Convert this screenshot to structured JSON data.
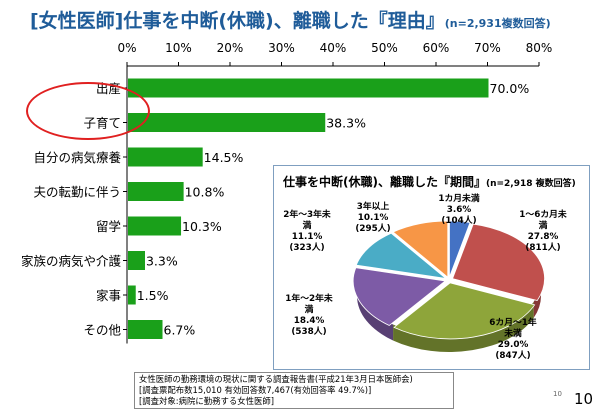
{
  "title": {
    "main": "[女性医師]仕事を中断(休職)、離職した『理由』",
    "sub": "(n=2,931複数回答)"
  },
  "chart_data": [
    {
      "type": "bar",
      "orientation": "horizontal",
      "categories": [
        "出産",
        "子育て",
        "自分の病気療養",
        "夫の転勤に伴う",
        "留学",
        "家族の病気や介護",
        "家事",
        "その他"
      ],
      "values": [
        70.0,
        38.3,
        14.5,
        10.8,
        10.3,
        3.3,
        1.5,
        6.7
      ],
      "value_labels": [
        "70.0%",
        "38.3%",
        "14.5%",
        "10.8%",
        "10.3%",
        "3.3%",
        "1.5%",
        "6.7%"
      ],
      "xlim": [
        0,
        80
      ],
      "x_ticks": [
        "0%",
        "10%",
        "20%",
        "30%",
        "40%",
        "50%",
        "60%",
        "70%",
        "80%"
      ],
      "bar_color": "#1aa01a",
      "gridlines": false
    },
    {
      "type": "pie",
      "title": "仕事を中断(休職)、離職した『期間』",
      "subtitle": "(n=2,918 複数回答)",
      "slices": [
        {
          "label_lines": [
            "1カ月未満",
            "3.6%",
            "(104人)"
          ],
          "value": 3.6,
          "color": "#4472c4"
        },
        {
          "label_lines": [
            "1〜6カ月未",
            "満",
            "27.8%",
            "(811人)"
          ],
          "value": 27.8,
          "color": "#c0504d"
        },
        {
          "label_lines": [
            "6カ月〜1年",
            "未満",
            "29.0%",
            "(847人)"
          ],
          "value": 29.0,
          "color": "#8ea53a"
        },
        {
          "label_lines": [
            "1年〜2年未",
            "満",
            "18.4%",
            "(538人)"
          ],
          "value": 18.4,
          "color": "#7d5ba6"
        },
        {
          "label_lines": [
            "2年〜3年未",
            "満",
            "11.1%",
            "(323人)"
          ],
          "value": 11.1,
          "color": "#4aacc6"
        },
        {
          "label_lines": [
            "3年以上",
            "10.1%",
            "(295人)"
          ],
          "value": 10.1,
          "color": "#f79646"
        }
      ]
    }
  ],
  "source": {
    "line1": "女性医師の勤務環境の現状に関する調査報告書(平成21年3月日本医師会)",
    "line2": "[調査票配布数15,010 有効回答数7,467(有効回答率 49.7%)]",
    "line3": "[調査対象:病院に勤務する女性医師]"
  },
  "page": {
    "number": "10",
    "small_number": "10"
  },
  "colors": {
    "highlight_oval": "#e02020",
    "title": "#1f5c99"
  }
}
